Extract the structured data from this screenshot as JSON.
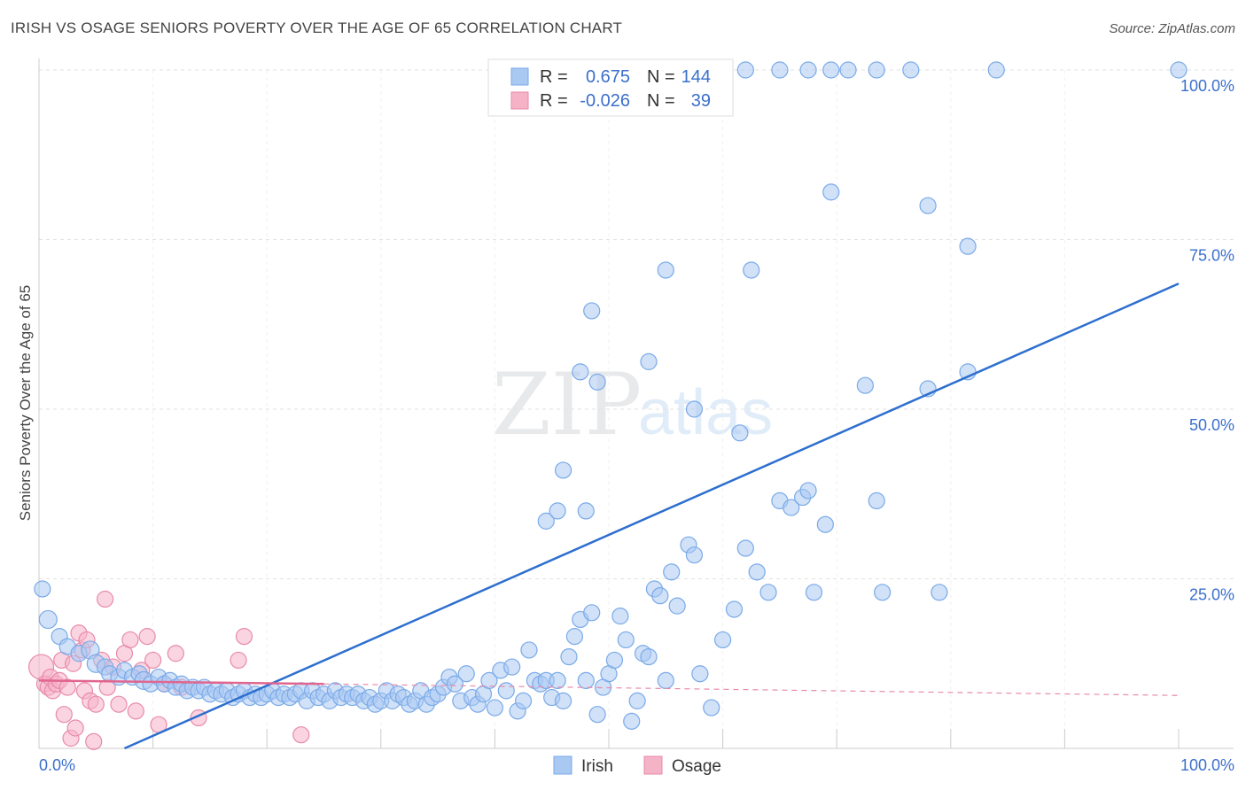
{
  "header": {
    "title": "IRISH VS OSAGE SENIORS POVERTY OVER THE AGE OF 65 CORRELATION CHART",
    "source": "Source: ZipAtlas.com"
  },
  "watermark": {
    "zip": "ZIP",
    "atlas": "atlas"
  },
  "legend_box": {
    "rows": [
      {
        "r_label": "R =",
        "r_value": "0.675",
        "n_label": "N =",
        "n_value": "144",
        "color": "#a9c8f2"
      },
      {
        "r_label": "R =",
        "r_value": "-0.026",
        "n_label": "N =",
        "n_value": "39",
        "color": "#f5b3c8"
      }
    ]
  },
  "bottom_legend": [
    {
      "label": "Irish",
      "color": "#a9c8f2"
    },
    {
      "label": "Osage",
      "color": "#f5b3c8"
    }
  ],
  "chart_data": {
    "type": "scatter",
    "title": "IRISH VS OSAGE SENIORS POVERTY OVER THE AGE OF 65 CORRELATION CHART",
    "xlabel": "",
    "ylabel": "Seniors Poverty Over the Age of 65",
    "xlim": [
      0,
      100
    ],
    "ylim": [
      0,
      100
    ],
    "x_ticks": [
      "0.0%",
      "100.0%"
    ],
    "y_ticks": [
      {
        "value": 25,
        "label": "25.0%"
      },
      {
        "value": 50,
        "label": "50.0%"
      },
      {
        "value": 75,
        "label": "75.0%"
      },
      {
        "value": 100,
        "label": "100.0%"
      }
    ],
    "grid": true,
    "legend_position": "top-center",
    "series": [
      {
        "name": "Irish",
        "color": "#7aaae8",
        "fill": "#a9c8f2",
        "trend": {
          "x0": 7.5,
          "y0": 0,
          "x1": 100,
          "y1": 68.5,
          "color": "#2d6fcf"
        },
        "points": [
          [
            0.3,
            23.5,
            9
          ],
          [
            0.8,
            19.0,
            10
          ],
          [
            1.8,
            16.5,
            9
          ],
          [
            2.5,
            15.0,
            9
          ],
          [
            3.5,
            14.0,
            9
          ],
          [
            4.5,
            14.5,
            10
          ],
          [
            5.0,
            12.5,
            10
          ],
          [
            5.8,
            12.0,
            9
          ],
          [
            6.2,
            11.0,
            9
          ],
          [
            7.0,
            10.5,
            9
          ],
          [
            7.5,
            11.5,
            9
          ],
          [
            8.2,
            10.5,
            9
          ],
          [
            8.8,
            11.0,
            9
          ],
          [
            9.2,
            10.0,
            10
          ],
          [
            9.8,
            9.5,
            9
          ],
          [
            10.5,
            10.5,
            9
          ],
          [
            11.0,
            9.5,
            9
          ],
          [
            11.5,
            10.0,
            9
          ],
          [
            12.0,
            9.0,
            9
          ],
          [
            12.5,
            9.5,
            9
          ],
          [
            13.0,
            8.5,
            9
          ],
          [
            13.5,
            9.0,
            9
          ],
          [
            14.0,
            8.5,
            9
          ],
          [
            14.5,
            9.0,
            9
          ],
          [
            15.0,
            8.0,
            9
          ],
          [
            15.5,
            8.5,
            9
          ],
          [
            16.0,
            8.0,
            9
          ],
          [
            16.5,
            8.5,
            9
          ],
          [
            17.0,
            7.5,
            9
          ],
          [
            17.5,
            8.0,
            9
          ],
          [
            18.0,
            8.5,
            9
          ],
          [
            18.5,
            7.5,
            9
          ],
          [
            19.0,
            8.0,
            9
          ],
          [
            19.5,
            7.5,
            9
          ],
          [
            20.0,
            8.0,
            9
          ],
          [
            20.5,
            8.5,
            9
          ],
          [
            21.0,
            7.5,
            9
          ],
          [
            21.5,
            8.0,
            9
          ],
          [
            22.0,
            7.5,
            9
          ],
          [
            22.5,
            8.0,
            9
          ],
          [
            23.0,
            8.5,
            9
          ],
          [
            23.5,
            7.0,
            9
          ],
          [
            24.0,
            8.5,
            9
          ],
          [
            24.5,
            7.5,
            9
          ],
          [
            25.0,
            8.0,
            9
          ],
          [
            25.5,
            7.0,
            9
          ],
          [
            26.0,
            8.5,
            9
          ],
          [
            26.5,
            7.5,
            9
          ],
          [
            27.0,
            8.0,
            9
          ],
          [
            27.5,
            7.5,
            9
          ],
          [
            28.0,
            8.0,
            9
          ],
          [
            28.5,
            7.0,
            9
          ],
          [
            29.0,
            7.5,
            9
          ],
          [
            29.5,
            6.5,
            9
          ],
          [
            30.0,
            7.0,
            9
          ],
          [
            30.5,
            8.5,
            9
          ],
          [
            31.0,
            7.0,
            9
          ],
          [
            31.5,
            8.0,
            9
          ],
          [
            32.0,
            7.5,
            9
          ],
          [
            32.5,
            6.5,
            9
          ],
          [
            33.0,
            7.0,
            9
          ],
          [
            33.5,
            8.5,
            9
          ],
          [
            34.0,
            6.5,
            9
          ],
          [
            34.5,
            7.5,
            9
          ],
          [
            35.0,
            8.0,
            9
          ],
          [
            35.5,
            9.0,
            9
          ],
          [
            36.0,
            10.5,
            9
          ],
          [
            36.5,
            9.5,
            9
          ],
          [
            37.0,
            7.0,
            9
          ],
          [
            37.5,
            11.0,
            9
          ],
          [
            38.0,
            7.5,
            9
          ],
          [
            38.5,
            6.5,
            9
          ],
          [
            39.0,
            8.0,
            9
          ],
          [
            39.5,
            10.0,
            9
          ],
          [
            40.0,
            6.0,
            9
          ],
          [
            40.5,
            11.5,
            9
          ],
          [
            41.0,
            8.5,
            9
          ],
          [
            41.5,
            12.0,
            9
          ],
          [
            42.0,
            5.5,
            9
          ],
          [
            42.5,
            7.0,
            9
          ],
          [
            43.0,
            14.5,
            9
          ],
          [
            43.5,
            10.0,
            9
          ],
          [
            44.0,
            9.5,
            9
          ],
          [
            44.5,
            10.0,
            9
          ],
          [
            45.0,
            7.5,
            9
          ],
          [
            45.5,
            10.0,
            9
          ],
          [
            46.0,
            7.0,
            9
          ],
          [
            46.5,
            13.5,
            9
          ],
          [
            47.0,
            16.5,
            9
          ],
          [
            47.5,
            19.0,
            9
          ],
          [
            48.0,
            10.0,
            9
          ],
          [
            48.5,
            20.0,
            9
          ],
          [
            49.0,
            5.0,
            9
          ],
          [
            49.5,
            9.0,
            9
          ],
          [
            50.0,
            11.0,
            9
          ],
          [
            50.5,
            13.0,
            9
          ],
          [
            51.0,
            19.5,
            9
          ],
          [
            51.5,
            16.0,
            9
          ],
          [
            52.0,
            4.0,
            9
          ],
          [
            52.5,
            7.0,
            9
          ],
          [
            53.0,
            14.0,
            9
          ],
          [
            53.5,
            13.5,
            9
          ],
          [
            54.0,
            23.5,
            9
          ],
          [
            54.5,
            22.5,
            9
          ],
          [
            55.0,
            10.0,
            9
          ],
          [
            55.5,
            26.0,
            9
          ],
          [
            56.0,
            21.0,
            9
          ],
          [
            57.0,
            30.0,
            9
          ],
          [
            57.5,
            28.5,
            9
          ],
          [
            58.0,
            11.0,
            9
          ],
          [
            59.0,
            6.0,
            9
          ],
          [
            60.0,
            16.0,
            9
          ],
          [
            61.0,
            20.5,
            9
          ],
          [
            62.0,
            29.5,
            9
          ],
          [
            63.0,
            26.0,
            9
          ],
          [
            64.0,
            23.0,
            9
          ],
          [
            65.0,
            36.5,
            9
          ],
          [
            66.0,
            35.5,
            9
          ],
          [
            67.0,
            37.0,
            9
          ],
          [
            68.0,
            23.0,
            9
          ],
          [
            53.5,
            57.0,
            9
          ],
          [
            57.5,
            50.0,
            9
          ],
          [
            61.5,
            46.5,
            9
          ],
          [
            48.5,
            64.5,
            9
          ],
          [
            47.5,
            55.5,
            9
          ],
          [
            48.0,
            35.0,
            9
          ],
          [
            46.0,
            41.0,
            9
          ],
          [
            44.5,
            33.5,
            9
          ],
          [
            45.5,
            35.0,
            9
          ],
          [
            49.0,
            54.0,
            9
          ],
          [
            55.0,
            70.5,
            9
          ],
          [
            62.5,
            70.5,
            9
          ],
          [
            69.5,
            82.0,
            9
          ],
          [
            78.0,
            80.0,
            9
          ],
          [
            81.5,
            74.0,
            9
          ],
          [
            72.5,
            53.5,
            9
          ],
          [
            78.0,
            53.0,
            9
          ],
          [
            81.5,
            55.5,
            9
          ],
          [
            67.5,
            100.0,
            9
          ],
          [
            65.0,
            100.0,
            9
          ],
          [
            62.0,
            100.0,
            9
          ],
          [
            69.5,
            100.0,
            9
          ],
          [
            71.0,
            100.0,
            9
          ],
          [
            73.5,
            100.0,
            9
          ],
          [
            76.5,
            100.0,
            9
          ],
          [
            84.0,
            100.0,
            9
          ],
          [
            100.0,
            100.0,
            9
          ],
          [
            67.5,
            38.0,
            9
          ],
          [
            73.5,
            36.5,
            9
          ],
          [
            74.0,
            23.0,
            9
          ],
          [
            79.0,
            23.0,
            9
          ],
          [
            69.0,
            33.0,
            9
          ]
        ]
      },
      {
        "name": "Osage",
        "color": "#e88aaa",
        "fill": "#f5b3c8",
        "trend": {
          "x0": 0,
          "y0": 10.0,
          "x1": 25,
          "y1": 9.5,
          "color": "#e0668f"
        },
        "trend_ext": {
          "x0": 25,
          "y0": 9.5,
          "x1": 100,
          "y1": 7.8,
          "color": "#e88aaa"
        },
        "points": [
          [
            0.2,
            12.0,
            14
          ],
          [
            0.5,
            9.5,
            9
          ],
          [
            0.8,
            9.0,
            9
          ],
          [
            1.0,
            10.5,
            9
          ],
          [
            1.2,
            8.5,
            9
          ],
          [
            1.5,
            9.5,
            9
          ],
          [
            1.8,
            10.0,
            9
          ],
          [
            2.0,
            13.0,
            9
          ],
          [
            2.2,
            5.0,
            9
          ],
          [
            2.5,
            9.0,
            9
          ],
          [
            2.8,
            1.5,
            9
          ],
          [
            3.0,
            12.5,
            9
          ],
          [
            3.2,
            3.0,
            9
          ],
          [
            3.5,
            17.0,
            9
          ],
          [
            3.8,
            14.5,
            9
          ],
          [
            4.0,
            8.5,
            9
          ],
          [
            4.2,
            16.0,
            9
          ],
          [
            4.5,
            7.0,
            9
          ],
          [
            4.8,
            1.0,
            9
          ],
          [
            5.0,
            6.5,
            9
          ],
          [
            5.5,
            13.0,
            9
          ],
          [
            5.8,
            22.0,
            9
          ],
          [
            6.0,
            9.0,
            9
          ],
          [
            6.5,
            12.0,
            9
          ],
          [
            7.0,
            6.5,
            9
          ],
          [
            7.5,
            14.0,
            9
          ],
          [
            8.0,
            16.0,
            9
          ],
          [
            8.5,
            5.5,
            9
          ],
          [
            9.0,
            11.5,
            9
          ],
          [
            9.5,
            16.5,
            9
          ],
          [
            10.0,
            13.0,
            9
          ],
          [
            10.5,
            3.5,
            9
          ],
          [
            11.0,
            9.5,
            9
          ],
          [
            12.0,
            14.0,
            9
          ],
          [
            14.0,
            4.5,
            9
          ],
          [
            17.5,
            13.0,
            9
          ],
          [
            18.0,
            16.5,
            9
          ],
          [
            23.0,
            2.0,
            9
          ],
          [
            12.5,
            9.0,
            9
          ]
        ]
      }
    ]
  }
}
